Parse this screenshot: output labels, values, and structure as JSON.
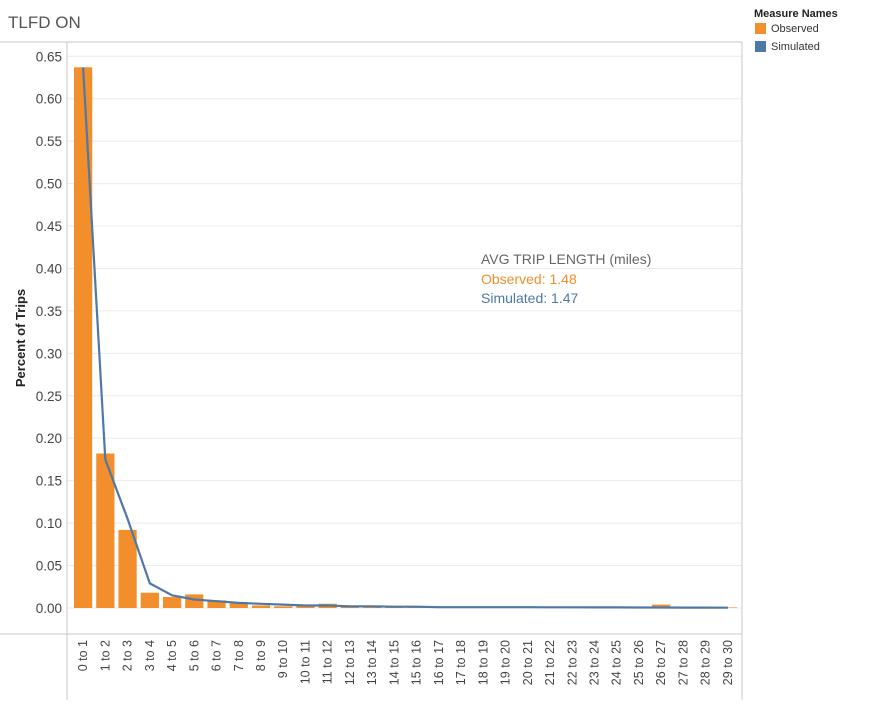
{
  "chart_data": {
    "type": "bar",
    "title": "TLFD ON",
    "ylabel": "Percent of Trips",
    "xlabel": "",
    "ylim": [
      0,
      0.66
    ],
    "yticks": [
      "0.00",
      "0.05",
      "0.10",
      "0.15",
      "0.20",
      "0.25",
      "0.30",
      "0.35",
      "0.40",
      "0.45",
      "0.50",
      "0.55",
      "0.60",
      "0.65"
    ],
    "categories": [
      "0 to 1",
      "1 to 2",
      "2 to 3",
      "3 to 4",
      "4 to 5",
      "5 to 6",
      "6 to 7",
      "7 to 8",
      "8 to 9",
      "9 to 10",
      "10 to 11",
      "11 to 12",
      "12 to 13",
      "13 to 14",
      "14 to 15",
      "15 to 16",
      "16 to 17",
      "17 to 18",
      "18 to 19",
      "19 to 20",
      "20 to 21",
      "21 to 22",
      "22 to 23",
      "23 to 24",
      "24 to 25",
      "25 to 26",
      "26 to 27",
      "27 to 28",
      "28 to 29",
      "29 to 30"
    ],
    "series": [
      {
        "name": "Observed",
        "kind": "bar",
        "color": "#F28E2B",
        "values": [
          0.637,
          0.182,
          0.092,
          0.018,
          0.013,
          0.016,
          0.009,
          0.007,
          0.003,
          0.002,
          0.003,
          0.005,
          0.002,
          0.001,
          0.001,
          0.001,
          0.001,
          0.001,
          0.001,
          0.0005,
          0.0005,
          0.0005,
          0.0005,
          0.0005,
          0.0005,
          0.0005,
          0.004,
          0.0005,
          0.0005,
          0.0005
        ]
      },
      {
        "name": "Simulated",
        "kind": "line",
        "color": "#4E79A7",
        "values": [
          0.637,
          0.175,
          0.105,
          0.029,
          0.015,
          0.01,
          0.008,
          0.006,
          0.005,
          0.004,
          0.003,
          0.003,
          0.002,
          0.002,
          0.0015,
          0.0015,
          0.001,
          0.001,
          0.001,
          0.001,
          0.001,
          0.0008,
          0.0008,
          0.0007,
          0.0007,
          0.0006,
          0.0006,
          0.0005,
          0.0005,
          0.0004
        ]
      }
    ],
    "legend": {
      "title": "Measure Names",
      "position": "top-right"
    },
    "annotation": {
      "heading": "AVG TRIP LENGTH (miles)",
      "observed": "Observed: 1.48",
      "simulated": "Simulated: 1.47"
    },
    "grid": true
  },
  "colors": {
    "observed": "#F28E2B",
    "simulated": "#4E79A7",
    "gridline": "#EBEBEB",
    "axis": "#C8C8C8",
    "annotation_heading": "#666666"
  }
}
